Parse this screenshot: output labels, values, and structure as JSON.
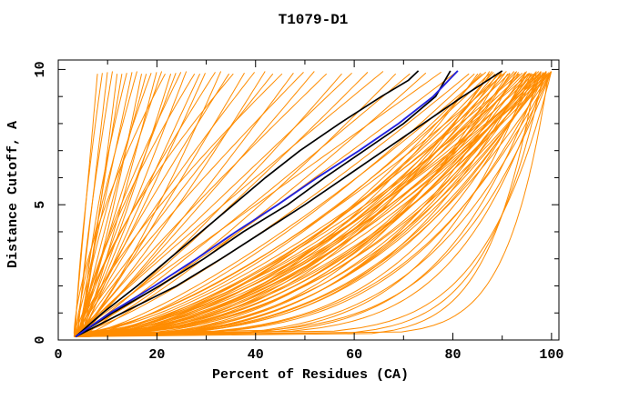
{
  "page": {
    "background": "#ffffff"
  },
  "chart_data": {
    "type": "line",
    "title": "T1079-D1",
    "xlabel": "Percent of Residues (CA)",
    "ylabel": "Distance Cutoff, A",
    "xlim": [
      0,
      101.5
    ],
    "ylim": [
      0,
      10.35
    ],
    "x_major_ticks": [
      0,
      20,
      40,
      60,
      80,
      100
    ],
    "x_minor_ticks": [
      10,
      30,
      50,
      70,
      90
    ],
    "y_major_ticks": [
      0,
      5,
      10
    ],
    "y_minor_ticks": [
      1,
      2,
      3,
      4,
      6,
      7,
      8,
      9
    ],
    "grid": false,
    "legend_position": "none",
    "colors": {
      "orange": "#ff8c00",
      "black": "#000000",
      "blue": "#2222dd"
    },
    "series": [
      {
        "name": "other-models-orange",
        "color_key": "orange",
        "stroke_width": 1,
        "style": "param_power",
        "start_pct": 3.5,
        "start_cutoff": 0.12,
        "end_cutoff": 9.95,
        "curves": [
          [
            8,
            1.0
          ],
          [
            9,
            1.4
          ],
          [
            10,
            1.0
          ],
          [
            11,
            1.3
          ],
          [
            12,
            0.85
          ],
          [
            13,
            1.1
          ],
          [
            14,
            1.5
          ],
          [
            15,
            0.95
          ],
          [
            16,
            1.2
          ],
          [
            17,
            0.8
          ],
          [
            18,
            1.05
          ],
          [
            19,
            1.35
          ],
          [
            20,
            0.9
          ],
          [
            21,
            1.15
          ],
          [
            22,
            1.5
          ],
          [
            23,
            0.85
          ],
          [
            24,
            1.0
          ],
          [
            25,
            1.25
          ],
          [
            26,
            0.95
          ],
          [
            28,
            1.4
          ],
          [
            29,
            1.05
          ],
          [
            30,
            0.9
          ],
          [
            32,
            1.2
          ],
          [
            33,
            0.8
          ],
          [
            35,
            1.1
          ],
          [
            36,
            1.45
          ],
          [
            38,
            0.95
          ],
          [
            40,
            1.2
          ],
          [
            42,
            0.85
          ],
          [
            44,
            1.05
          ],
          [
            46,
            1.3
          ],
          [
            48,
            0.9
          ],
          [
            50,
            1.15
          ],
          [
            52,
            0.95
          ],
          [
            55,
            1.1
          ],
          [
            58,
            0.85
          ],
          [
            60,
            1.0
          ],
          [
            63,
            0.9
          ],
          [
            66,
            1.05
          ],
          [
            69,
            0.8
          ],
          [
            72,
            0.95
          ],
          [
            75,
            0.85
          ],
          [
            78,
            1.0
          ],
          [
            81,
            0.9
          ],
          [
            84,
            0.8
          ],
          [
            85,
            0.7
          ],
          [
            86,
            0.55
          ],
          [
            87,
            0.75
          ],
          [
            88,
            0.45
          ],
          [
            88,
            0.65
          ],
          [
            89,
            0.5
          ],
          [
            90,
            0.6
          ],
          [
            90,
            0.35
          ],
          [
            91,
            0.7
          ],
          [
            91,
            0.5
          ],
          [
            92,
            0.4
          ],
          [
            92,
            0.62
          ],
          [
            93,
            0.55
          ],
          [
            93,
            0.33
          ],
          [
            94,
            0.48
          ],
          [
            94,
            0.68
          ],
          [
            95,
            0.42
          ],
          [
            95,
            0.58
          ],
          [
            95,
            0.3
          ],
          [
            96,
            0.52
          ],
          [
            96,
            0.38
          ],
          [
            96,
            0.65
          ],
          [
            97,
            0.45
          ],
          [
            97,
            0.28
          ],
          [
            97,
            0.6
          ],
          [
            97,
            0.36
          ],
          [
            98,
            0.5
          ],
          [
            98,
            0.32
          ],
          [
            98,
            0.56
          ],
          [
            98,
            0.42
          ],
          [
            99,
            0.38
          ],
          [
            99,
            0.55
          ],
          [
            99,
            0.27
          ],
          [
            99,
            0.47
          ],
          [
            99,
            0.62
          ],
          [
            100,
            0.35
          ],
          [
            100,
            0.5
          ],
          [
            100,
            0.29
          ],
          [
            100,
            0.44
          ],
          [
            100,
            0.58
          ],
          [
            100,
            0.25
          ],
          [
            99.5,
            0.4
          ],
          [
            98.5,
            0.34
          ],
          [
            97.5,
            0.52
          ],
          [
            96.5,
            0.44
          ],
          [
            95.5,
            0.36
          ],
          [
            94.5,
            0.6
          ],
          [
            93.5,
            0.42
          ],
          [
            92.5,
            0.5
          ],
          [
            91.5,
            0.38
          ],
          [
            90.5,
            0.55
          ],
          [
            89.5,
            0.45
          ],
          [
            88.5,
            0.58
          ],
          [
            87.5,
            0.4
          ],
          [
            86.5,
            0.62
          ],
          [
            85.5,
            0.48
          ],
          [
            96,
            0.22
          ],
          [
            98,
            0.2
          ],
          [
            99,
            0.18
          ],
          [
            100,
            0.21
          ],
          [
            97,
            0.1
          ],
          [
            98.5,
            0.12
          ],
          [
            99.5,
            0.085
          ],
          [
            100,
            0.14
          ]
        ]
      },
      {
        "name": "reference-model-black-1",
        "color_key": "black",
        "stroke_width": 1.7,
        "points": [
          [
            0.12,
            3.5
          ],
          [
            1,
            9
          ],
          [
            2,
            16
          ],
          [
            3,
            22.5
          ],
          [
            4,
            29
          ],
          [
            5,
            35.5
          ],
          [
            6,
            42
          ],
          [
            7,
            49
          ],
          [
            8,
            57
          ],
          [
            9,
            65.5
          ],
          [
            9.6,
            71
          ],
          [
            9.95,
            73
          ]
        ]
      },
      {
        "name": "reference-model-black-2",
        "color_key": "black",
        "stroke_width": 1.7,
        "points": [
          [
            0.12,
            3.5
          ],
          [
            1,
            11
          ],
          [
            2,
            20.5
          ],
          [
            3,
            29.5
          ],
          [
            4,
            37.5
          ],
          [
            5,
            46.5
          ],
          [
            6,
            54
          ],
          [
            7,
            62
          ],
          [
            8,
            70
          ],
          [
            9,
            76.5
          ],
          [
            9.95,
            79.5
          ]
        ]
      },
      {
        "name": "reference-model-black-3",
        "color_key": "black",
        "stroke_width": 1.7,
        "points": [
          [
            0.12,
            3.5
          ],
          [
            1,
            13
          ],
          [
            2,
            24
          ],
          [
            3,
            33
          ],
          [
            4,
            41.5
          ],
          [
            5,
            50
          ],
          [
            6,
            58
          ],
          [
            7,
            66
          ],
          [
            8,
            74
          ],
          [
            9,
            82
          ],
          [
            9.95,
            90
          ]
        ]
      },
      {
        "name": "highlighted-model-blue",
        "color_key": "blue",
        "stroke_width": 1.9,
        "points": [
          [
            0.12,
            3.5
          ],
          [
            1,
            10.5
          ],
          [
            2,
            19.5
          ],
          [
            3,
            28
          ],
          [
            4,
            36
          ],
          [
            5,
            44.5
          ],
          [
            6,
            52.5
          ],
          [
            7,
            61
          ],
          [
            8,
            69
          ],
          [
            9,
            76
          ],
          [
            9.95,
            81
          ]
        ]
      }
    ]
  }
}
